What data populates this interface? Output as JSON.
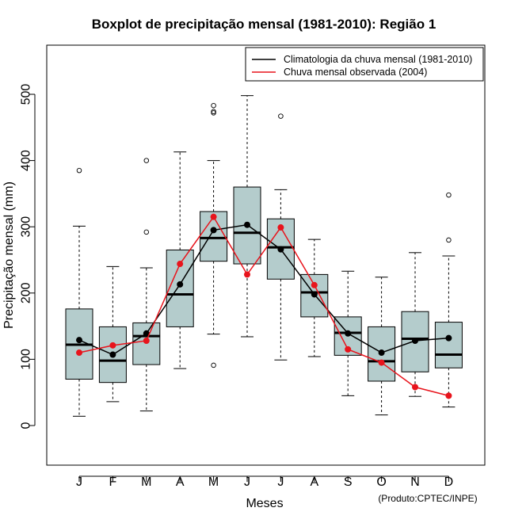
{
  "chart_data": {
    "type": "boxplot",
    "title": "Boxplot de precipitação mensal (1981-2010): Região 1",
    "xlabel": "Meses",
    "ylabel": "Precipitação mensal (mm)",
    "ylim": [
      -60,
      560
    ],
    "yticks": [
      0,
      100,
      200,
      300,
      400,
      500
    ],
    "categories": [
      "J",
      "F",
      "M",
      "A",
      "M",
      "J",
      "J",
      "A",
      "S",
      "O",
      "N",
      "D"
    ],
    "boxes": [
      {
        "min": 14,
        "q1": 70,
        "median": 122,
        "q3": 176,
        "max": 301,
        "outliers": [
          385
        ]
      },
      {
        "min": 36,
        "q1": 65,
        "median": 98,
        "q3": 149,
        "max": 240,
        "outliers": []
      },
      {
        "min": 22,
        "q1": 92,
        "median": 135,
        "q3": 155,
        "max": 238,
        "outliers": [
          292,
          400
        ]
      },
      {
        "min": 86,
        "q1": 149,
        "median": 198,
        "q3": 265,
        "max": 413,
        "outliers": []
      },
      {
        "min": 138,
        "q1": 248,
        "median": 283,
        "q3": 323,
        "max": 400,
        "outliers": [
          91,
          472,
          474,
          483
        ]
      },
      {
        "min": 134,
        "q1": 244,
        "median": 291,
        "q3": 360,
        "max": 498,
        "outliers": []
      },
      {
        "min": 99,
        "q1": 221,
        "median": 269,
        "q3": 312,
        "max": 356,
        "outliers": [
          467
        ]
      },
      {
        "min": 104,
        "q1": 164,
        "median": 201,
        "q3": 228,
        "max": 281,
        "outliers": []
      },
      {
        "min": 45,
        "q1": 106,
        "median": 140,
        "q3": 164,
        "max": 233,
        "outliers": []
      },
      {
        "min": 16,
        "q1": 67,
        "median": 97,
        "q3": 149,
        "max": 224,
        "outliers": []
      },
      {
        "min": 44,
        "q1": 81,
        "median": 131,
        "q3": 172,
        "max": 261,
        "outliers": []
      },
      {
        "min": 28,
        "q1": 87,
        "median": 107,
        "q3": 156,
        "max": 256,
        "outliers": [
          280,
          348
        ]
      }
    ],
    "series": [
      {
        "name": "Climatologia da chuva mensal (1981-2010)",
        "color": "#000000",
        "values": [
          129,
          107,
          139,
          213,
          295,
          303,
          266,
          198,
          139,
          110,
          128,
          132
        ]
      },
      {
        "name": "Chuva mensal observada (2004)",
        "color": "#e8141c",
        "values": [
          110,
          121,
          128,
          244,
          315,
          228,
          299,
          212,
          115,
          95,
          58,
          45
        ]
      }
    ],
    "box_fill": "#b4cccc",
    "legend_position": "top-right",
    "credit": "(Produto:CPTEC/INPE)"
  }
}
